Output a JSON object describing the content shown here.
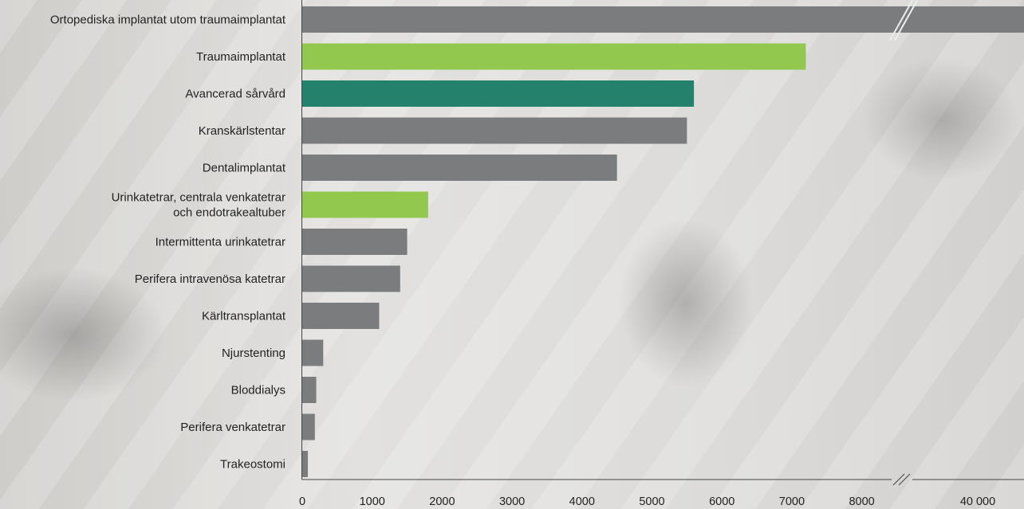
{
  "chart_data": {
    "type": "bar",
    "orientation": "horizontal",
    "categories": [
      [
        "Ortopediska implantat utom traumaimplantat"
      ],
      [
        "Traumaimplantat"
      ],
      [
        "Avancerad sårvård"
      ],
      [
        "Kranskärlstentar"
      ],
      [
        "Dentalimplantat"
      ],
      [
        "Urinkatetrar, centrala venkatetrar",
        "och endotrakealtuber"
      ],
      [
        "Intermittenta urinkatetrar"
      ],
      [
        "Perifera intravenösa katetrar"
      ],
      [
        "Kärltransplantat"
      ],
      [
        "Njurstenting"
      ],
      [
        "Bloddialys"
      ],
      [
        "Perifera venkatetrar"
      ],
      [
        "Trakeostomi"
      ]
    ],
    "values": [
      40000,
      7200,
      5600,
      5500,
      4500,
      1800,
      1500,
      1400,
      1100,
      300,
      200,
      180,
      80
    ],
    "colors": [
      "#7b7c7e",
      "#92c84e",
      "#23816c",
      "#7b7c7e",
      "#7b7c7e",
      "#92c84e",
      "#7b7c7e",
      "#7b7c7e",
      "#7b7c7e",
      "#7b7c7e",
      "#7b7c7e",
      "#7b7c7e",
      "#7b7c7e"
    ],
    "x_ticks": [
      "0",
      "1000",
      "2000",
      "3000",
      "4000",
      "5000",
      "6000",
      "7000",
      "8000",
      "40 000"
    ],
    "x_tick_values": [
      0,
      1000,
      2000,
      3000,
      4000,
      5000,
      6000,
      7000,
      8000,
      40000
    ],
    "axis_break": true,
    "xlim": [
      0,
      40000
    ],
    "title": "",
    "xlabel": "",
    "ylabel": "",
    "grid": false,
    "legend": "none"
  }
}
